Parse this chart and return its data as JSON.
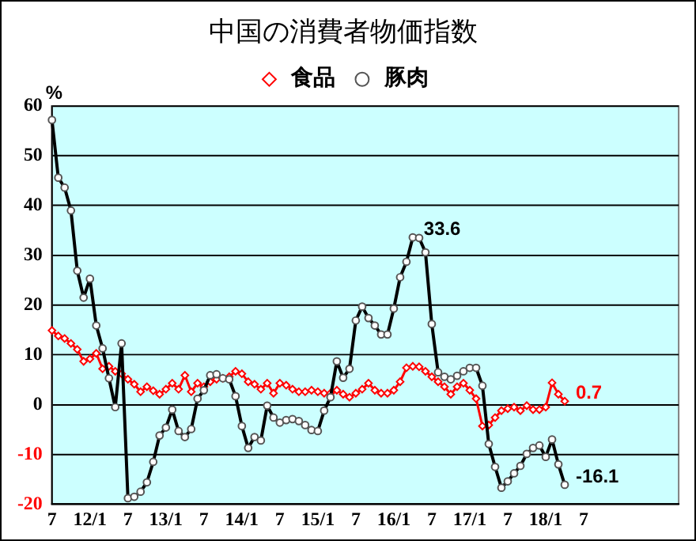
{
  "chart_data": {
    "type": "line",
    "title": "中国の消費者物価指数",
    "ylabel": "%",
    "categories": [
      "7",
      null,
      null,
      null,
      null,
      null,
      "12/1",
      null,
      null,
      null,
      null,
      null,
      "7",
      null,
      null,
      null,
      null,
      null,
      "13/1",
      null,
      null,
      null,
      null,
      null,
      "7",
      null,
      null,
      null,
      null,
      null,
      "14/1",
      null,
      null,
      null,
      null,
      null,
      "7",
      null,
      null,
      null,
      null,
      null,
      "15/1",
      null,
      null,
      null,
      null,
      null,
      "7",
      null,
      null,
      null,
      null,
      null,
      "16/1",
      null,
      null,
      null,
      null,
      null,
      "7",
      null,
      null,
      null,
      null,
      null,
      "17/1",
      null,
      null,
      null,
      null,
      null,
      "7",
      null,
      null,
      null,
      null,
      null,
      "18/1",
      null,
      null,
      null,
      null,
      null,
      "7",
      null,
      null,
      null,
      null,
      null,
      null,
      null,
      null,
      null,
      null,
      null,
      null,
      null,
      null,
      null
    ],
    "series": [
      {
        "name": "食品",
        "color": "#ff0000",
        "marker": "diamond",
        "values": [
          14.9,
          13.8,
          13.3,
          12.3,
          11.1,
          8.7,
          9.2,
          10.3,
          7.2,
          7.7,
          6.7,
          6.2,
          5.1,
          4.1,
          2.6,
          3.6,
          2.8,
          2.1,
          3.1,
          4.3,
          3.1,
          5.9,
          2.6,
          4.3,
          3.6,
          4.6,
          5.1,
          5.3,
          5.6,
          6.7,
          6.2,
          4.6,
          4.1,
          3.1,
          4.3,
          2.3,
          4.3,
          3.9,
          3.1,
          2.6,
          2.6,
          2.9,
          2.6,
          2.3,
          2.3,
          2.9,
          2.1,
          1.5,
          2.3,
          3.1,
          4.3,
          2.9,
          2.3,
          2.3,
          2.9,
          4.6,
          7.4,
          7.7,
          7.6,
          6.7,
          5.6,
          4.6,
          3.6,
          2.1,
          3.6,
          4.3,
          2.9,
          1.2,
          -4.3,
          -4.1,
          -2.6,
          -1.2,
          -0.8,
          -0.5,
          -1.2,
          -0.2,
          -1.0,
          -1.0,
          -0.5,
          4.4,
          2.1,
          0.7,
          null,
          null,
          null,
          null,
          null,
          null,
          null,
          null,
          null,
          null,
          null,
          null,
          null,
          null,
          null,
          null,
          null,
          null
        ],
        "value_labels": [
          null,
          null,
          null,
          null,
          null,
          null,
          null,
          null,
          null,
          null,
          null,
          null,
          null,
          null,
          null,
          null,
          null,
          null,
          null,
          null,
          null,
          null,
          null,
          null,
          null,
          null,
          null,
          null,
          null,
          null,
          null,
          null,
          null,
          null,
          null,
          null,
          null,
          null,
          null,
          null,
          null,
          null,
          null,
          null,
          null,
          null,
          null,
          null,
          null,
          null,
          null,
          null,
          null,
          null,
          null,
          null,
          null,
          null,
          null,
          null,
          null,
          null,
          null,
          null,
          null,
          null,
          null,
          null,
          null,
          null,
          null,
          null,
          null,
          null,
          null,
          null,
          null,
          null,
          null,
          null,
          null,
          "0.7",
          null,
          null,
          null,
          null,
          null,
          null,
          null,
          null,
          null,
          null,
          null,
          null,
          null,
          null,
          null,
          null,
          null,
          null
        ]
      },
      {
        "name": "豚肉",
        "color": "#000000",
        "values": [
          57.2,
          45.6,
          43.6,
          39,
          26.9,
          21.5,
          25.3,
          15.9,
          11.3,
          5.3,
          -0.5,
          12.3,
          -18.8,
          -18.5,
          -17.5,
          -15.6,
          -11.5,
          -6.2,
          -4.6,
          -1.0,
          -5.3,
          -6.5,
          -4.9,
          1.2,
          2.9,
          5.9,
          6.1,
          5.3,
          5.1,
          1.7,
          -4.3,
          -8.7,
          -6.5,
          -7.2,
          -0.2,
          -2.6,
          -3.6,
          -3.1,
          -2.9,
          -3.3,
          -4.1,
          -5.1,
          -5.3,
          -1.2,
          1.5,
          8.7,
          5.4,
          7.2,
          16.9,
          19.7,
          17.4,
          15.9,
          14.1,
          14.1,
          19.3,
          25.6,
          28.7,
          33.6,
          33.5,
          30.6,
          16.2,
          6.5,
          5.6,
          5.1,
          5.8,
          6.7,
          7.4,
          7.4,
          3.8,
          -7.9,
          -12.5,
          -16.7,
          -15.4,
          -13.8,
          -12.3,
          -9.9,
          -8.7,
          -8.2,
          -10.5,
          -7.0,
          -12.0,
          -16.1,
          null,
          null,
          null,
          null,
          null,
          null,
          null,
          null,
          null,
          null,
          null,
          null,
          null,
          null,
          null,
          null,
          null,
          null
        ],
        "value_labels": [
          null,
          null,
          null,
          null,
          null,
          null,
          null,
          null,
          null,
          null,
          null,
          null,
          null,
          null,
          null,
          null,
          null,
          null,
          null,
          null,
          null,
          null,
          null,
          null,
          null,
          null,
          null,
          null,
          null,
          null,
          null,
          null,
          null,
          null,
          null,
          null,
          null,
          null,
          null,
          null,
          null,
          null,
          null,
          null,
          null,
          null,
          null,
          null,
          null,
          null,
          null,
          null,
          null,
          null,
          null,
          null,
          null,
          "33.6",
          null,
          null,
          null,
          null,
          null,
          null,
          null,
          null,
          null,
          null,
          null,
          null,
          null,
          null,
          null,
          null,
          null,
          null,
          null,
          null,
          null,
          null,
          null,
          "-16.1",
          null,
          null,
          null,
          null,
          null,
          null,
          null,
          null,
          null,
          null,
          null,
          null,
          null,
          null,
          null,
          null,
          null,
          null
        ]
      }
    ],
    "ylim": [
      -20,
      60
    ],
    "yticks": [
      -20,
      -10,
      0,
      10,
      20,
      30,
      40,
      50,
      60
    ],
    "grid": "y",
    "legend": "top",
    "marker": "circle",
    "line_style": "solid"
  }
}
